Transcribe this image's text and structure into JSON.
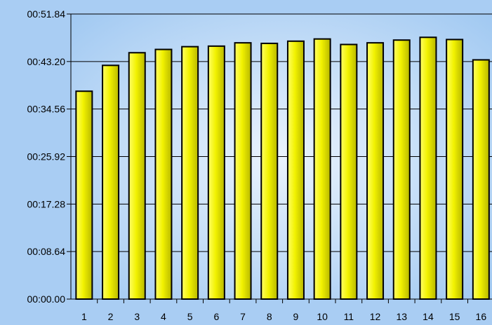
{
  "chart_data": {
    "type": "bar",
    "title": "",
    "xlabel": "",
    "ylabel": "",
    "categories": [
      "1",
      "2",
      "3",
      "4",
      "5",
      "6",
      "7",
      "8",
      "9",
      "10",
      "11",
      "12",
      "13",
      "14",
      "15",
      "16"
    ],
    "values": [
      "00:37.80",
      "00:42.50",
      "00:44.80",
      "00:45.40",
      "00:45.90",
      "00:46.00",
      "00:46.60",
      "00:46.50",
      "00:46.90",
      "00:47.30",
      "00:46.30",
      "00:46.60",
      "00:47.10",
      "00:47.60",
      "00:47.20",
      "00:43.50"
    ],
    "y_ticks": [
      "00:00.00",
      "00:08.64",
      "00:17.28",
      "00:25.92",
      "00:34.56",
      "00:43.20",
      "00:51.84"
    ],
    "ylim": [
      "00:00.00",
      "00:51.84"
    ],
    "grid": true,
    "legend": "none",
    "colors": {
      "bar_fill_light": "#ffff66",
      "bar_fill": "#f2f200",
      "bar_fill_dark": "#b8b800",
      "bar_stroke": "#000000",
      "plot_bg_center": "#eaf3fd",
      "plot_bg_edge": "#9cc6f1",
      "page_bg": "#a9cdf3",
      "grid": "#000000"
    }
  }
}
